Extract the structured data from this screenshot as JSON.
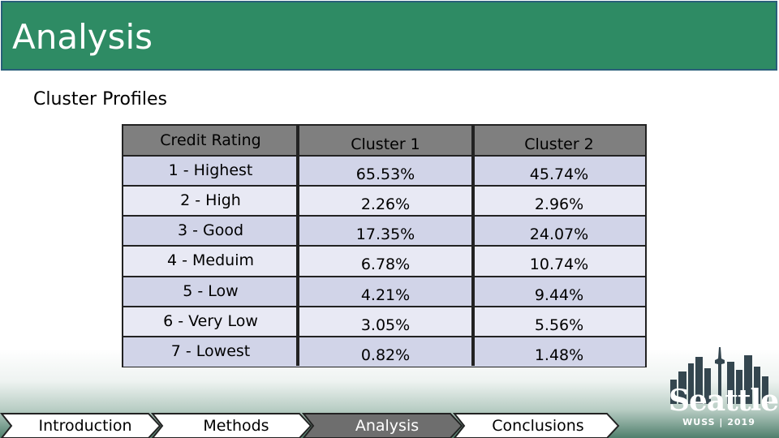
{
  "slide": {
    "title": "Analysis",
    "subtitle": "Cluster Profiles"
  },
  "table": {
    "headers": [
      "Credit Rating",
      "Cluster 1",
      "Cluster 2"
    ],
    "rows": [
      [
        "1 - Highest",
        "65.53%",
        "45.74%"
      ],
      [
        "2 - High",
        "2.26%",
        "2.96%"
      ],
      [
        "3 - Good",
        "17.35%",
        "24.07%"
      ],
      [
        "4 - Meduim",
        "6.78%",
        "10.74%"
      ],
      [
        "5 - Low",
        "4.21%",
        "9.44%"
      ],
      [
        "6 - Very Low",
        "3.05%",
        "5.56%"
      ],
      [
        "7 - Lowest",
        "0.82%",
        "1.48%"
      ]
    ]
  },
  "nav": {
    "items": [
      "Introduction",
      "Methods",
      "Analysis",
      "Conclusions"
    ],
    "active": "Analysis"
  },
  "logo": {
    "name": "Seattle",
    "tagline": "WUSS | 2019"
  },
  "colors": {
    "title_bar": "#2e8b64",
    "table_header": "#7f7f7f",
    "row_dark": "#d1d4e8",
    "row_light": "#e8e9f4",
    "nav_active": "#6e6e6e",
    "nav_inactive": "#ffffff"
  }
}
